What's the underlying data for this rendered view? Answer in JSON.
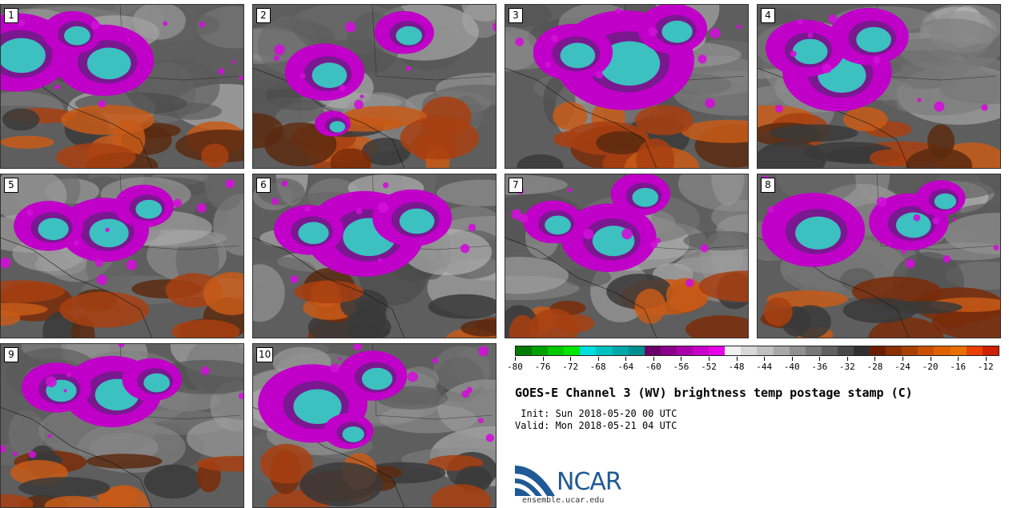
{
  "panels": [
    {
      "label": "1"
    },
    {
      "label": "2"
    },
    {
      "label": "3"
    },
    {
      "label": "4"
    },
    {
      "label": "5"
    },
    {
      "label": "6"
    },
    {
      "label": "7"
    },
    {
      "label": "8"
    },
    {
      "label": "9"
    },
    {
      "label": "10"
    }
  ],
  "colorbar": {
    "colors": [
      "#007a00",
      "#00a000",
      "#00c800",
      "#00e600",
      "#00dede",
      "#00c0c0",
      "#00a8a8",
      "#009090",
      "#6a006a",
      "#8a008a",
      "#aa00aa",
      "#c800c8",
      "#e600e6",
      "#f0f0f0",
      "#d8d8d8",
      "#c0c0c0",
      "#a8a8a8",
      "#909090",
      "#787878",
      "#606060",
      "#484848",
      "#303030",
      "#6a2000",
      "#8a3000",
      "#a84000",
      "#c85000",
      "#e06000",
      "#e87000",
      "#e84000",
      "#d02000"
    ],
    "min": -80,
    "max": -10,
    "tick_labels": [
      "-80",
      "-76",
      "-72",
      "-68",
      "-64",
      "-60",
      "-56",
      "-52",
      "-48",
      "-44",
      "-40",
      "-36",
      "-32",
      "-28",
      "-24",
      "-20",
      "-16",
      "-12"
    ]
  },
  "title": "GOES-E Channel 3 (WV) brightness temp postage stamp (C)",
  "init": " Init: Sun 2018-05-20 00 UTC",
  "valid": "Valid: Mon 2018-05-21 04 UTC",
  "logo_text": "NCAR",
  "url": "ensemble.ucar.edu"
}
